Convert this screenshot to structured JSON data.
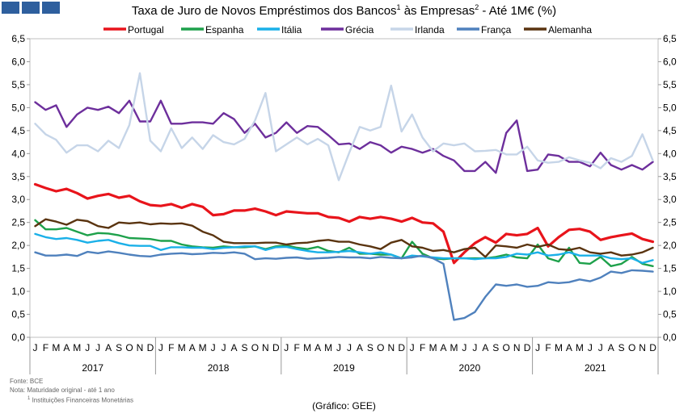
{
  "title": {
    "part1": "Taxa de Juro de Novos Empréstimos dos Bancos",
    "sup1": "1",
    "part2": " às Empresas",
    "sup2": "2",
    "part3": " -  Até 1M€ (%)"
  },
  "colors": {
    "portugal": "#e8141b",
    "espanha": "#1ea14b",
    "italia": "#1ab0e8",
    "grecia": "#6d2f9c",
    "irlanda": "#c6d5e8",
    "franca": "#4f81bd",
    "alemanha": "#5a3410"
  },
  "chart_data": {
    "type": "line",
    "ylim": [
      0,
      6.5
    ],
    "y_ticks": [
      "0,0",
      "0,5",
      "1,0",
      "1,5",
      "2,0",
      "2,5",
      "3,0",
      "3,5",
      "4,0",
      "4,5",
      "5,0",
      "5,5",
      "6,0",
      "6,5"
    ],
    "month_labels": [
      "J",
      "F",
      "M",
      "A",
      "M",
      "J",
      "J",
      "A",
      "S",
      "O",
      "N",
      "D"
    ],
    "years": [
      "2017",
      "2018",
      "2019",
      "2020",
      "2021"
    ],
    "series": [
      {
        "name": "Portugal",
        "color": "#e8141b",
        "values": [
          3.33,
          3.25,
          3.18,
          3.23,
          3.14,
          3.02,
          3.08,
          3.12,
          3.04,
          3.08,
          2.96,
          2.88,
          2.86,
          2.9,
          2.82,
          2.9,
          2.84,
          2.66,
          2.68,
          2.76,
          2.76,
          2.8,
          2.74,
          2.66,
          2.74,
          2.72,
          2.7,
          2.7,
          2.62,
          2.6,
          2.52,
          2.62,
          2.58,
          2.62,
          2.58,
          2.52,
          2.6,
          2.5,
          2.48,
          2.3,
          1.62,
          1.85,
          2.05,
          2.18,
          2.06,
          2.25,
          2.22,
          2.25,
          2.38,
          1.98,
          2.18,
          2.34,
          2.36,
          2.3,
          2.12,
          2.18,
          2.22,
          2.26,
          2.14,
          2.08
        ]
      },
      {
        "name": "Espanha",
        "color": "#1ea14b",
        "values": [
          2.55,
          2.35,
          2.35,
          2.38,
          2.3,
          2.22,
          2.27,
          2.26,
          2.22,
          2.16,
          2.15,
          2.14,
          2.1,
          2.1,
          2.02,
          1.98,
          1.96,
          1.95,
          1.98,
          1.96,
          1.96,
          1.98,
          1.92,
          1.98,
          2.0,
          1.95,
          1.92,
          1.97,
          1.88,
          1.85,
          1.95,
          1.82,
          1.82,
          1.8,
          1.8,
          1.72,
          2.08,
          1.82,
          1.72,
          1.7,
          1.72,
          1.72,
          1.72,
          1.72,
          1.75,
          1.8,
          1.74,
          1.72,
          2.02,
          1.72,
          1.65,
          1.95,
          1.62,
          1.6,
          1.75,
          1.55,
          1.6,
          1.75,
          1.6,
          1.55
        ]
      },
      {
        "name": "Itália",
        "color": "#1ab0e8",
        "values": [
          2.25,
          2.18,
          2.14,
          2.16,
          2.12,
          2.06,
          2.1,
          2.12,
          2.05,
          2.0,
          1.99,
          1.99,
          1.9,
          1.96,
          1.96,
          1.95,
          1.95,
          1.92,
          1.95,
          1.96,
          1.98,
          1.98,
          1.9,
          1.96,
          1.97,
          1.92,
          1.88,
          1.85,
          1.85,
          1.86,
          1.88,
          1.85,
          1.82,
          1.85,
          1.8,
          1.72,
          1.78,
          1.76,
          1.74,
          1.72,
          1.72,
          1.72,
          1.7,
          1.72,
          1.72,
          1.75,
          1.82,
          1.8,
          1.85,
          1.78,
          1.8,
          1.85,
          1.78,
          1.78,
          1.78,
          1.72,
          1.7,
          1.72,
          1.62,
          1.68
        ]
      },
      {
        "name": "Grécia",
        "color": "#6d2f9c",
        "values": [
          5.12,
          4.95,
          5.05,
          4.58,
          4.85,
          5.0,
          4.95,
          5.02,
          4.88,
          5.15,
          4.7,
          4.7,
          5.15,
          4.65,
          4.65,
          4.68,
          4.68,
          4.65,
          4.88,
          4.75,
          4.45,
          4.65,
          4.35,
          4.45,
          4.68,
          4.45,
          4.6,
          4.58,
          4.4,
          4.2,
          4.22,
          4.1,
          4.25,
          4.18,
          4.02,
          4.15,
          4.1,
          4.02,
          4.1,
          3.95,
          3.85,
          3.62,
          3.62,
          3.82,
          3.58,
          4.45,
          4.72,
          3.62,
          3.65,
          3.98,
          3.95,
          3.82,
          3.82,
          3.72,
          4.02,
          3.75,
          3.65,
          3.75,
          3.65,
          3.82
        ]
      },
      {
        "name": "Irlanda",
        "color": "#c6d5e8",
        "values": [
          4.65,
          4.42,
          4.3,
          4.02,
          4.18,
          4.18,
          4.05,
          4.28,
          4.12,
          4.62,
          5.75,
          4.28,
          4.05,
          4.55,
          4.12,
          4.35,
          4.1,
          4.4,
          4.25,
          4.2,
          4.32,
          4.72,
          5.32,
          4.05,
          4.2,
          4.35,
          4.2,
          4.32,
          4.18,
          3.42,
          4.02,
          4.58,
          4.5,
          4.58,
          5.48,
          4.48,
          4.85,
          4.35,
          4.05,
          4.22,
          4.18,
          4.22,
          4.05,
          4.06,
          4.08,
          3.98,
          3.98,
          4.15,
          3.85,
          3.8,
          3.82,
          3.92,
          3.85,
          3.8,
          3.68,
          3.9,
          3.82,
          3.95,
          4.42,
          3.85
        ]
      },
      {
        "name": "França",
        "color": "#4f81bd",
        "values": [
          1.85,
          1.78,
          1.78,
          1.8,
          1.77,
          1.86,
          1.83,
          1.87,
          1.84,
          1.8,
          1.77,
          1.76,
          1.8,
          1.82,
          1.83,
          1.81,
          1.82,
          1.84,
          1.83,
          1.85,
          1.82,
          1.7,
          1.72,
          1.71,
          1.73,
          1.74,
          1.71,
          1.72,
          1.73,
          1.75,
          1.74,
          1.74,
          1.72,
          1.75,
          1.73,
          1.72,
          1.74,
          1.78,
          1.72,
          1.6,
          0.38,
          0.42,
          0.55,
          0.88,
          1.15,
          1.12,
          1.15,
          1.1,
          1.12,
          1.2,
          1.18,
          1.2,
          1.26,
          1.22,
          1.3,
          1.43,
          1.4,
          1.46,
          1.45,
          1.43
        ]
      },
      {
        "name": "Alemanha",
        "color": "#5a3410",
        "values": [
          2.42,
          2.57,
          2.52,
          2.45,
          2.56,
          2.53,
          2.42,
          2.38,
          2.5,
          2.48,
          2.5,
          2.46,
          2.48,
          2.47,
          2.48,
          2.43,
          2.3,
          2.22,
          2.08,
          2.05,
          2.05,
          2.05,
          2.06,
          2.06,
          2.02,
          2.05,
          2.06,
          2.1,
          2.12,
          2.08,
          2.08,
          2.02,
          1.98,
          1.92,
          2.06,
          2.12,
          1.98,
          1.95,
          1.88,
          1.9,
          1.85,
          1.92,
          1.95,
          1.75,
          2.0,
          1.98,
          1.95,
          2.02,
          1.97,
          2.02,
          1.92,
          1.9,
          1.95,
          1.85,
          1.82,
          1.85,
          1.78,
          1.8,
          1.85,
          1.95
        ]
      }
    ]
  },
  "footnotes": {
    "source": "Fonte: BCE",
    "note": "Nota: Maturidade original - até 1 ano",
    "fn1_sup": "1",
    "fn1": " Instituições Financeiras Monetárias"
  },
  "credit": "(Gráfico: GEE)"
}
